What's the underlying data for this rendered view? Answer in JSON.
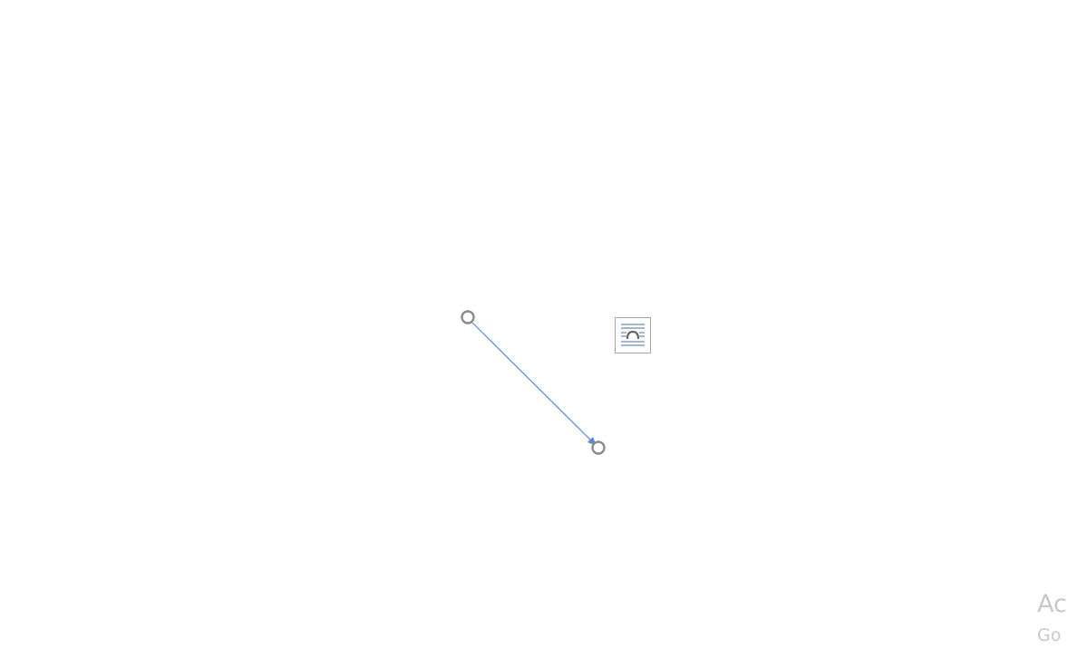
{
  "document": {
    "selected_shape": "arrow-connector",
    "line_color": "#5b8bc9",
    "handle_color": "#8c8c8c"
  },
  "layout_options": {
    "icon": "wrap-text-icon",
    "icon_color": "#4a6fa5"
  },
  "watermark": {
    "line1": "Ac",
    "line2": "Go",
    "color": "#c8c8c8"
  }
}
